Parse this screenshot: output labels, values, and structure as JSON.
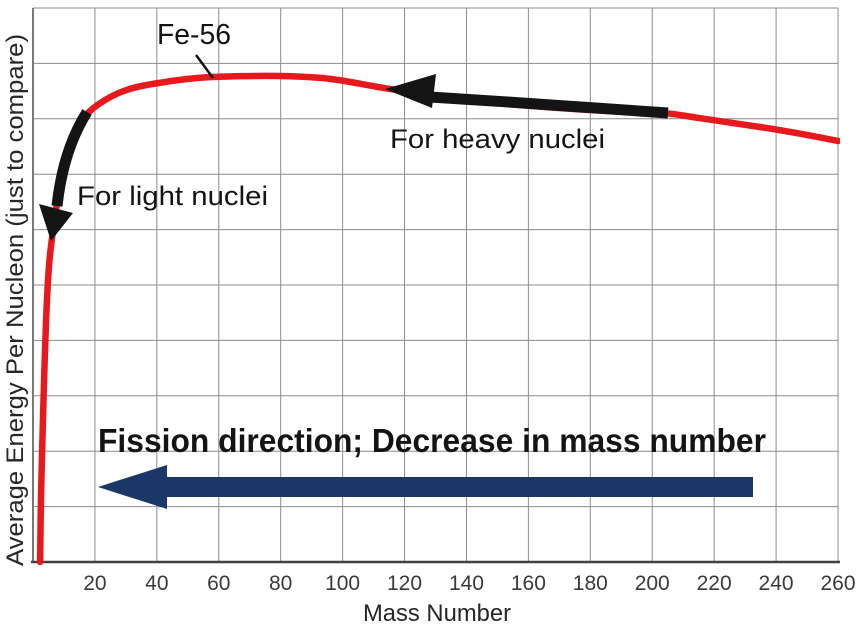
{
  "chart_data": {
    "type": "line",
    "title": "",
    "xlabel": "Mass Number",
    "ylabel": "Average Energy Per Nucleon (just to compare)",
    "x_ticks": [
      20,
      40,
      60,
      80,
      100,
      120,
      140,
      160,
      180,
      200,
      220,
      240,
      260
    ],
    "xlim": [
      0,
      260
    ],
    "ylim": [
      0,
      1
    ],
    "y_axis_note": "unlabeled relative scale",
    "grid": true,
    "legend": "none",
    "series": [
      {
        "name": "average binding energy per nucleon curve",
        "color": "#e8191d",
        "peak_at_mass": 56,
        "points": [
          [
            2.3,
            0.0
          ],
          [
            2.8,
            0.17
          ],
          [
            4.5,
            0.47
          ],
          [
            6.5,
            0.6
          ],
          [
            10.5,
            0.725
          ],
          [
            14.5,
            0.776
          ],
          [
            17.0,
            0.806
          ],
          [
            23.3,
            0.834
          ],
          [
            31.3,
            0.854
          ],
          [
            41.0,
            0.865
          ],
          [
            54.0,
            0.874
          ],
          [
            67.0,
            0.877
          ],
          [
            81.5,
            0.877
          ],
          [
            96.0,
            0.872
          ],
          [
            113.0,
            0.856
          ],
          [
            128.0,
            0.843
          ],
          [
            151.0,
            0.828
          ],
          [
            173.5,
            0.818
          ],
          [
            193.0,
            0.812
          ],
          [
            204.5,
            0.81
          ],
          [
            215.5,
            0.801
          ],
          [
            235.0,
            0.785
          ],
          [
            248.0,
            0.773
          ],
          [
            260.0,
            0.76
          ]
        ]
      }
    ],
    "annotations": {
      "fe56": "Fe-56",
      "light_nuclei": "For light nuclei",
      "heavy_nuclei": "For heavy nuclei",
      "fission": "Fission direction; Decrease in mass number"
    },
    "colors": {
      "curve": "#e8191d",
      "annotation_black": "#141414",
      "fission_arrow": "#1b3767",
      "grid": "#8c8c8c",
      "axis_left": "#787878",
      "axis_bottom": "#404040",
      "tick_text": "#3a3a3a",
      "axis_title_text": "#262626"
    }
  }
}
